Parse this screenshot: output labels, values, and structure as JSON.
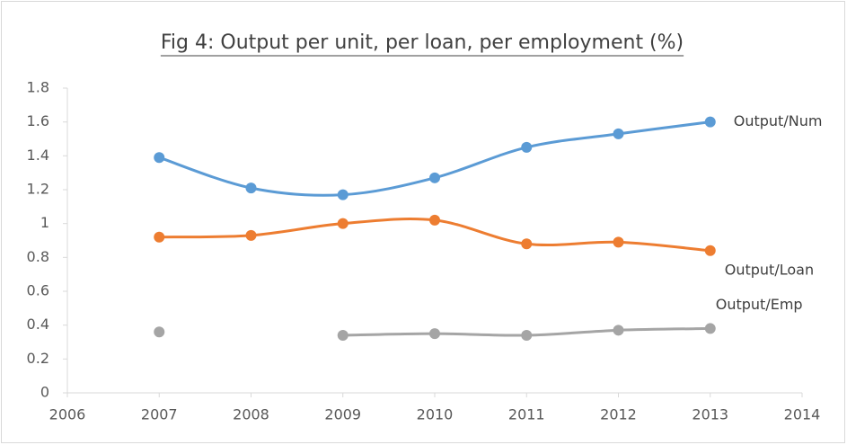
{
  "chart_data": {
    "type": "line",
    "title": "Fig 4: Output per unit, per loan, per employment (%)",
    "x": [
      2007,
      2008,
      2009,
      2010,
      2011,
      2012,
      2013
    ],
    "series": [
      {
        "name": "Output/Num",
        "color": "#5b9bd5",
        "values": [
          1.39,
          1.21,
          1.17,
          1.27,
          1.45,
          1.53,
          1.6
        ]
      },
      {
        "name": "Output/Loan",
        "color": "#ed7d31",
        "values": [
          0.92,
          0.93,
          1.0,
          1.02,
          0.88,
          0.89,
          0.84
        ]
      },
      {
        "name": "Output/Emp",
        "color": "#a5a5a5",
        "values": [
          0.36,
          null,
          0.34,
          0.35,
          0.34,
          0.37,
          0.38
        ]
      }
    ],
    "xlim": [
      2006,
      2014
    ],
    "xticks": [
      2006,
      2007,
      2008,
      2009,
      2010,
      2011,
      2012,
      2013,
      2014
    ],
    "ylim": [
      0,
      1.8
    ],
    "yticks": [
      0,
      0.2,
      0.4,
      0.6,
      0.8,
      1,
      1.2,
      1.4,
      1.6,
      1.8
    ],
    "grid": false,
    "smooth": true
  }
}
